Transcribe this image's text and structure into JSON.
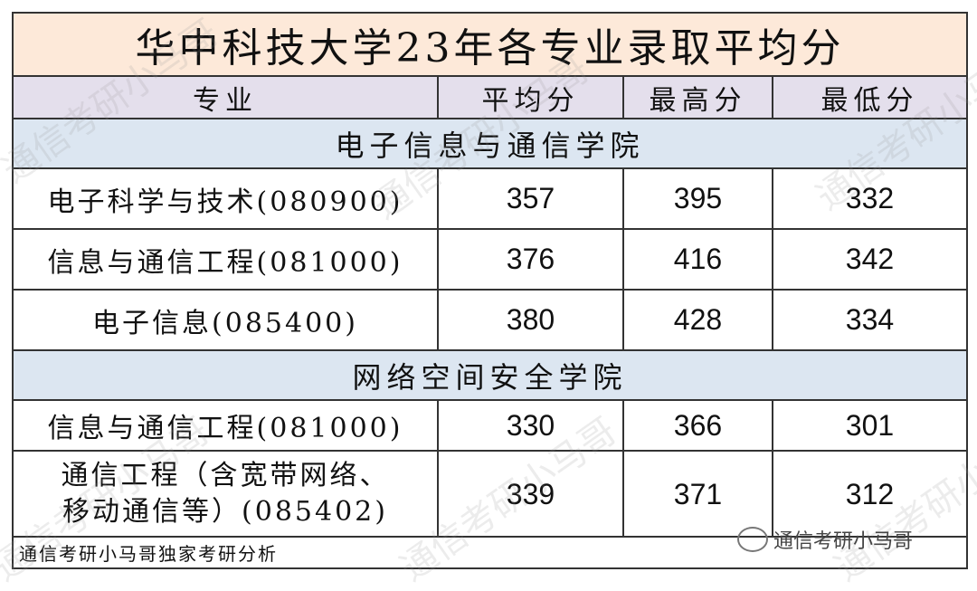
{
  "title": "华中科技大学23年各专业录取平均分",
  "columns": [
    "专业",
    "平均分",
    "最高分",
    "最低分"
  ],
  "sections": [
    {
      "name": "电子信息与通信学院",
      "rows": [
        {
          "major": "电子科学与技术(080900)",
          "avg": "357",
          "max": "395",
          "min": "332"
        },
        {
          "major": "信息与通信工程(081000)",
          "avg": "376",
          "max": "416",
          "min": "342"
        },
        {
          "major": "电子信息(085400)",
          "avg": "380",
          "max": "428",
          "min": "334"
        }
      ]
    },
    {
      "name": "网络空间安全学院",
      "rows": [
        {
          "major": "信息与通信工程(081000)",
          "avg": "330",
          "max": "366",
          "min": "301"
        },
        {
          "major_line1": "通信工程（含宽带网络、",
          "major_line2": "移动通信等）(085402)",
          "avg": "339",
          "max": "371",
          "min": "312"
        }
      ]
    }
  ],
  "footer": "通信考研小马哥独家考研分析",
  "watermark": "通信考研小马哥",
  "brand": {
    "icon": "wechat-icon",
    "label": "通信考研小马哥"
  },
  "colors": {
    "title_bg": "#fde9d9",
    "header_bg": "#e4dfec",
    "section_bg": "#dce6f1"
  }
}
